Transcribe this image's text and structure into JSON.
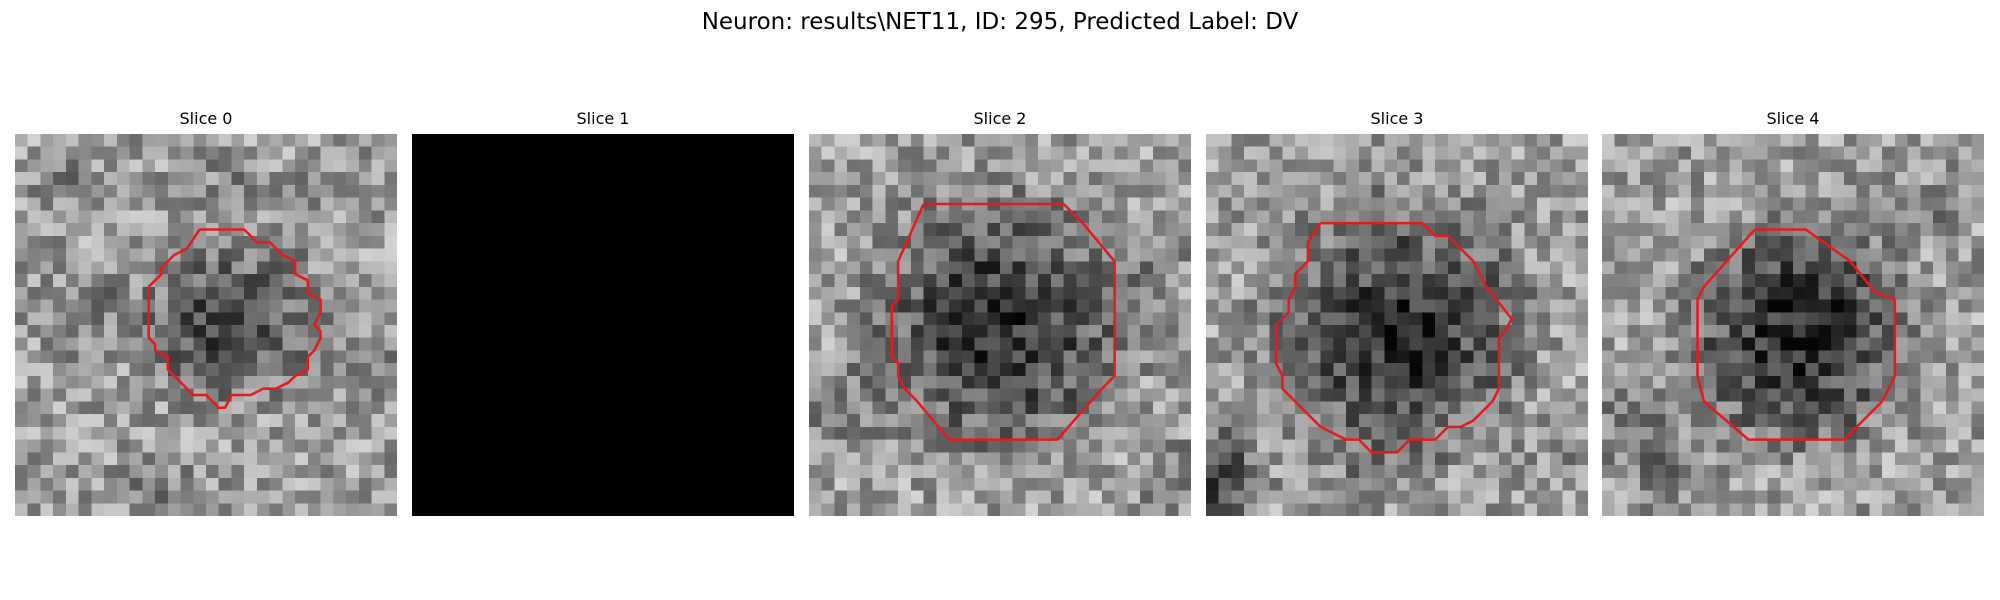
{
  "figure": {
    "suptitle": "Neuron: results\\NET11, ID: 295, Predicted Label: DV"
  },
  "colors": {
    "contour": "#e41a1c",
    "background": "#ffffff",
    "blank_slice": "#000000"
  },
  "panels": [
    {
      "title": "Slice 0",
      "content": "grayscale-noise-with-contour"
    },
    {
      "title": "Slice 1",
      "content": "blank-black"
    },
    {
      "title": "Slice 2",
      "content": "grayscale-noise-with-contour"
    },
    {
      "title": "Slice 3",
      "content": "grayscale-noise-with-contour"
    },
    {
      "title": "Slice 4",
      "content": "grayscale-noise-with-contour"
    }
  ]
}
